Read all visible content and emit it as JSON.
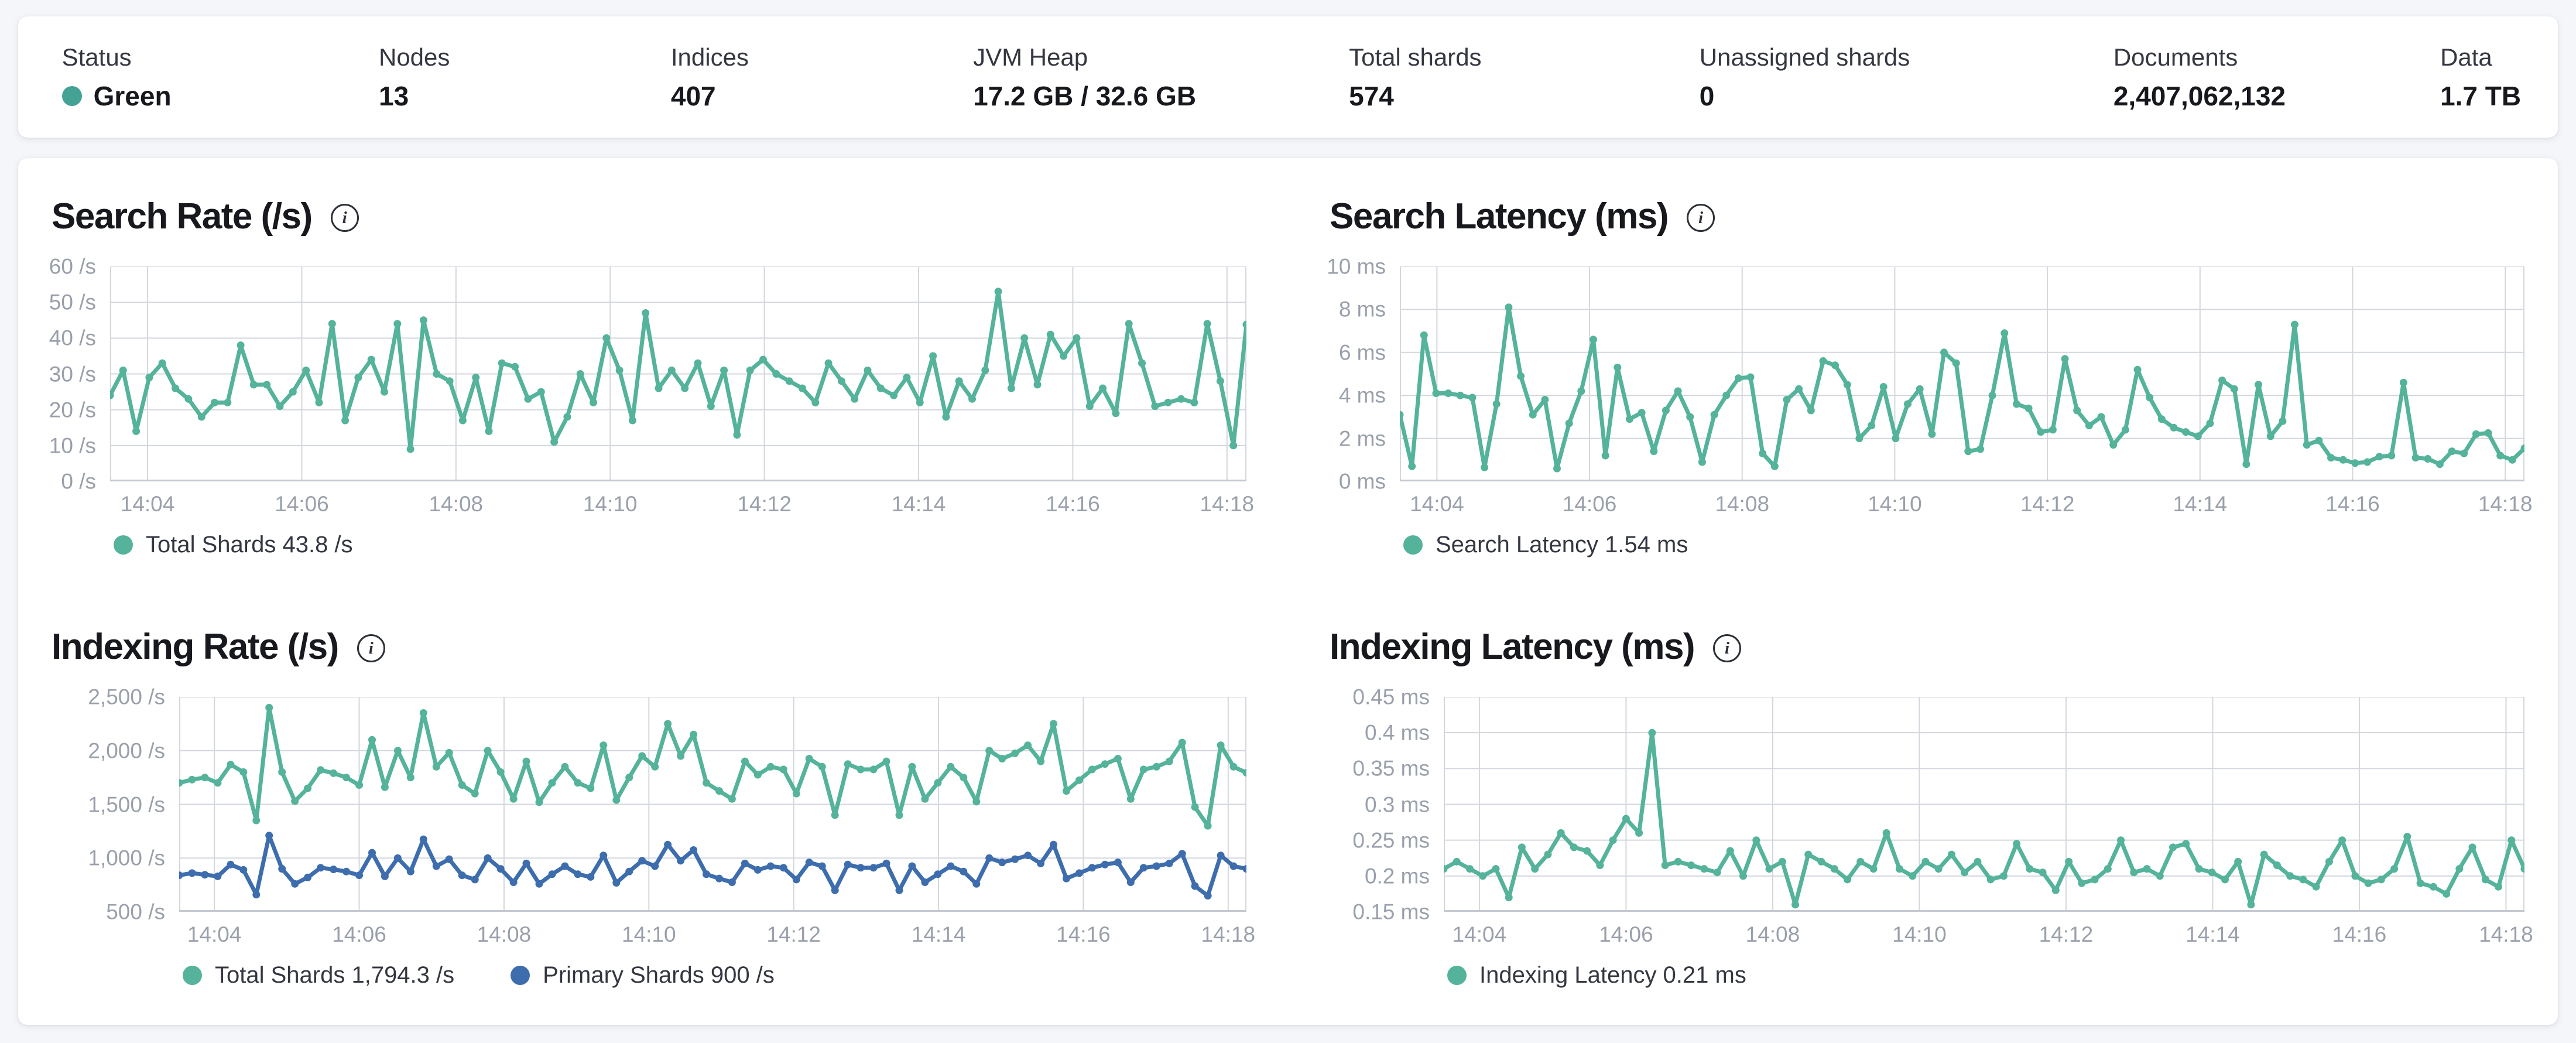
{
  "summary": {
    "items": [
      {
        "label": "Status",
        "value": "Green",
        "status_dot_color": "#44a295"
      },
      {
        "label": "Nodes",
        "value": "13"
      },
      {
        "label": "Indices",
        "value": "407"
      },
      {
        "label": "JVM Heap",
        "value": "17.2 GB / 32.6 GB"
      },
      {
        "label": "Total shards",
        "value": "574"
      },
      {
        "label": "Unassigned shards",
        "value": "0"
      },
      {
        "label": "Documents",
        "value": "2,407,062,132"
      },
      {
        "label": "Data",
        "value": "1.7 TB"
      }
    ]
  },
  "icons": {
    "info": "i"
  },
  "colors": {
    "teal": "#54b39a",
    "blue": "#3d6dad",
    "grid": "#d3d7dd",
    "axis_text": "#99a0ab",
    "status_green": "#44a295"
  },
  "chart_data": [
    {
      "id": "search-rate",
      "type": "line",
      "title": "Search Rate (/s)",
      "ylim": [
        0,
        60
      ],
      "yticks": [
        {
          "value": 60,
          "label": "60 /s"
        },
        {
          "value": 50,
          "label": "50 /s"
        },
        {
          "value": 40,
          "label": "40 /s"
        },
        {
          "value": 30,
          "label": "30 /s"
        },
        {
          "value": 20,
          "label": "20 /s"
        },
        {
          "value": 10,
          "label": "10 /s"
        },
        {
          "value": 0,
          "label": "0 /s"
        }
      ],
      "xticks": [
        "14:04",
        "14:06",
        "14:08",
        "14:10",
        "14:12",
        "14:14",
        "14:16",
        "14:18"
      ],
      "gutter": 100,
      "legend": [
        {
          "label": "Total Shards 43.8 /s",
          "color": "#54b39a"
        }
      ],
      "series": [
        {
          "name": "Total Shards",
          "color": "#54b39a",
          "values": [
            24,
            31,
            14,
            29,
            33,
            26,
            23,
            18,
            22,
            22,
            38,
            27,
            27,
            21,
            25,
            31,
            22,
            44,
            17,
            29,
            34,
            25,
            44,
            9,
            45,
            30,
            28,
            17,
            29,
            14,
            33,
            32,
            23,
            25,
            11,
            18,
            30,
            22,
            40,
            31,
            17,
            47,
            26,
            31,
            26,
            33,
            21,
            31,
            13,
            31,
            34,
            30,
            28,
            26,
            22,
            33,
            28,
            23,
            31,
            26,
            24,
            29,
            22,
            35,
            18,
            28,
            23,
            31,
            53,
            26,
            40,
            27,
            41,
            35,
            40,
            21,
            26,
            19,
            44,
            33,
            21,
            22,
            23,
            22,
            44,
            28,
            10,
            43.8
          ]
        }
      ]
    },
    {
      "id": "search-latency",
      "type": "line",
      "title": "Search Latency (ms)",
      "ylim": [
        0,
        10
      ],
      "yticks": [
        {
          "value": 10,
          "label": "10 ms"
        },
        {
          "value": 8,
          "label": "8 ms"
        },
        {
          "value": 6,
          "label": "6 ms"
        },
        {
          "value": 4,
          "label": "4 ms"
        },
        {
          "value": 2,
          "label": "2 ms"
        },
        {
          "value": 0,
          "label": "0 ms"
        }
      ],
      "xticks": [
        "14:04",
        "14:06",
        "14:08",
        "14:10",
        "14:12",
        "14:14",
        "14:16",
        "14:18"
      ],
      "gutter": 120,
      "legend": [
        {
          "label": "Search Latency 1.54 ms",
          "color": "#54b39a"
        }
      ],
      "series": [
        {
          "name": "Search Latency",
          "color": "#54b39a",
          "values": [
            3.1,
            0.7,
            6.8,
            4.1,
            4.1,
            4.0,
            3.9,
            0.65,
            3.6,
            8.1,
            4.9,
            3.1,
            3.8,
            0.6,
            2.7,
            4.2,
            6.6,
            1.2,
            5.3,
            2.9,
            3.2,
            1.4,
            3.3,
            4.2,
            3.0,
            0.9,
            3.1,
            4.0,
            4.8,
            4.85,
            1.3,
            0.7,
            3.8,
            4.3,
            3.3,
            5.6,
            5.4,
            4.5,
            2.0,
            2.6,
            4.4,
            2.0,
            3.6,
            4.3,
            2.2,
            6.0,
            5.5,
            1.4,
            1.5,
            4.0,
            6.9,
            3.6,
            3.4,
            2.3,
            2.4,
            5.7,
            3.3,
            2.6,
            3.0,
            1.7,
            2.4,
            5.2,
            3.9,
            2.9,
            2.5,
            2.3,
            2.1,
            2.7,
            4.7,
            4.3,
            0.8,
            4.5,
            2.1,
            2.8,
            7.3,
            1.7,
            1.9,
            1.1,
            1.0,
            0.85,
            0.9,
            1.15,
            1.2,
            4.6,
            1.1,
            1.05,
            0.8,
            1.4,
            1.3,
            2.2,
            2.25,
            1.2,
            1.0,
            1.54
          ]
        }
      ]
    },
    {
      "id": "indexing-rate",
      "type": "line",
      "title": "Indexing Rate (/s)",
      "ylim": [
        500,
        2500
      ],
      "yticks": [
        {
          "value": 2500,
          "label": "2,500 /s"
        },
        {
          "value": 2000,
          "label": "2,000 /s"
        },
        {
          "value": 1500,
          "label": "1,500 /s"
        },
        {
          "value": 1000,
          "label": "1,000 /s"
        },
        {
          "value": 500,
          "label": "500 /s"
        }
      ],
      "xticks": [
        "14:04",
        "14:06",
        "14:08",
        "14:10",
        "14:12",
        "14:14",
        "14:16",
        "14:18"
      ],
      "gutter": 218,
      "legend": [
        {
          "label": "Total Shards 1,794.3 /s",
          "color": "#54b39a"
        },
        {
          "label": "Primary Shards 900 /s",
          "color": "#3d6dad"
        }
      ],
      "series": [
        {
          "name": "Total Shards",
          "color": "#54b39a",
          "values": [
            1700,
            1730,
            1750,
            1700,
            1870,
            1800,
            1350,
            2400,
            1800,
            1530,
            1650,
            1820,
            1790,
            1750,
            1680,
            2100,
            1660,
            2000,
            1750,
            2350,
            1850,
            1980,
            1680,
            1600,
            2000,
            1800,
            1550,
            1900,
            1520,
            1700,
            1850,
            1700,
            1650,
            2050,
            1540,
            1750,
            1950,
            1850,
            2250,
            1950,
            2150,
            1700,
            1625,
            1550,
            1900,
            1775,
            1850,
            1825,
            1600,
            1925,
            1850,
            1400,
            1875,
            1825,
            1825,
            1900,
            1400,
            1850,
            1550,
            1700,
            1850,
            1750,
            1525,
            2000,
            1925,
            1975,
            2050,
            1900,
            2250,
            1625,
            1725,
            1825,
            1875,
            1925,
            1550,
            1825,
            1850,
            1900,
            2075,
            1475,
            1300,
            2050,
            1850,
            1794.3
          ]
        },
        {
          "name": "Primary Shards",
          "color": "#3d6dad",
          "values": [
            840,
            860,
            845,
            830,
            940,
            890,
            660,
            1210,
            900,
            760,
            820,
            910,
            895,
            875,
            840,
            1050,
            830,
            1000,
            875,
            1175,
            925,
            990,
            840,
            800,
            1000,
            900,
            775,
            950,
            760,
            850,
            925,
            850,
            825,
            1025,
            770,
            875,
            975,
            925,
            1125,
            975,
            1075,
            850,
            810,
            775,
            950,
            890,
            925,
            910,
            800,
            960,
            925,
            700,
            940,
            910,
            910,
            950,
            700,
            925,
            775,
            850,
            925,
            875,
            760,
            1000,
            960,
            990,
            1025,
            950,
            1125,
            810,
            860,
            910,
            940,
            960,
            775,
            910,
            925,
            950,
            1040,
            740,
            650,
            1025,
            925,
            900
          ]
        }
      ]
    },
    {
      "id": "indexing-latency",
      "type": "line",
      "title": "Indexing Latency (ms)",
      "ylim": [
        0.15,
        0.45
      ],
      "yticks": [
        {
          "value": 0.45,
          "label": "0.45 ms"
        },
        {
          "value": 0.4,
          "label": "0.4 ms"
        },
        {
          "value": 0.35,
          "label": "0.35 ms"
        },
        {
          "value": 0.3,
          "label": "0.3 ms"
        },
        {
          "value": 0.25,
          "label": "0.25 ms"
        },
        {
          "value": 0.2,
          "label": "0.2 ms"
        },
        {
          "value": 0.15,
          "label": "0.15 ms"
        }
      ],
      "xticks": [
        "14:04",
        "14:06",
        "14:08",
        "14:10",
        "14:12",
        "14:14",
        "14:16",
        "14:18"
      ],
      "gutter": 195,
      "legend": [
        {
          "label": "Indexing Latency 0.21 ms",
          "color": "#54b39a"
        }
      ],
      "series": [
        {
          "name": "Indexing Latency",
          "color": "#54b39a",
          "values": [
            0.21,
            0.22,
            0.21,
            0.2,
            0.21,
            0.17,
            0.24,
            0.21,
            0.23,
            0.26,
            0.24,
            0.235,
            0.215,
            0.25,
            0.28,
            0.26,
            0.4,
            0.215,
            0.22,
            0.215,
            0.21,
            0.205,
            0.235,
            0.2,
            0.25,
            0.21,
            0.22,
            0.16,
            0.23,
            0.22,
            0.21,
            0.195,
            0.22,
            0.21,
            0.26,
            0.21,
            0.2,
            0.22,
            0.21,
            0.23,
            0.205,
            0.22,
            0.195,
            0.2,
            0.245,
            0.21,
            0.205,
            0.18,
            0.22,
            0.19,
            0.195,
            0.21,
            0.25,
            0.205,
            0.21,
            0.2,
            0.24,
            0.245,
            0.21,
            0.205,
            0.195,
            0.22,
            0.16,
            0.23,
            0.215,
            0.2,
            0.195,
            0.185,
            0.22,
            0.25,
            0.2,
            0.19,
            0.195,
            0.21,
            0.255,
            0.19,
            0.185,
            0.175,
            0.21,
            0.24,
            0.195,
            0.185,
            0.25,
            0.21
          ]
        }
      ]
    }
  ]
}
